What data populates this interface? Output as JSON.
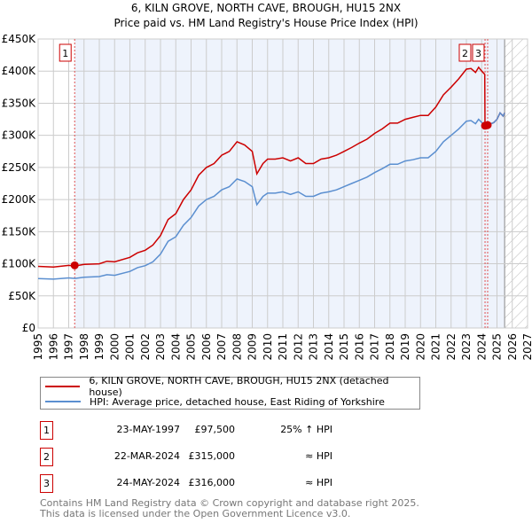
{
  "chart_data": {
    "type": "line",
    "title": "6, KILN GROVE, NORTH CAVE, BROUGH, HU15 2NX",
    "subtitle": "Price paid vs. HM Land Registry's House Price Index (HPI)",
    "xlim": [
      1995,
      2027
    ],
    "ylim": [
      0,
      450000
    ],
    "x_ticks": [
      "1995",
      "1996",
      "1997",
      "1998",
      "1999",
      "2000",
      "2001",
      "2002",
      "2003",
      "2004",
      "2005",
      "2006",
      "2007",
      "2008",
      "2009",
      "2010",
      "2011",
      "2012",
      "2013",
      "2014",
      "2015",
      "2016",
      "2017",
      "2018",
      "2019",
      "2020",
      "2021",
      "2022",
      "2023",
      "2024",
      "2025",
      "2026",
      "2027"
    ],
    "y_ticks": [
      {
        "v": 0,
        "label": "£0"
      },
      {
        "v": 50000,
        "label": "£50K"
      },
      {
        "v": 100000,
        "label": "£100K"
      },
      {
        "v": 150000,
        "label": "£150K"
      },
      {
        "v": 200000,
        "label": "£200K"
      },
      {
        "v": 250000,
        "label": "£250K"
      },
      {
        "v": 300000,
        "label": "£300K"
      },
      {
        "v": 350000,
        "label": "£350K"
      },
      {
        "v": 400000,
        "label": "£400K"
      },
      {
        "v": 450000,
        "label": "£450K"
      }
    ],
    "grid": true,
    "shaded_range": [
      1997.39,
      2025.5
    ],
    "forecast_hatch_from": 2025.5,
    "x": [
      1995,
      1996,
      1997,
      1997.4,
      1998,
      1999,
      1999.5,
      2000,
      2001,
      2001.5,
      2002,
      2002.5,
      2003,
      2003.5,
      2004,
      2004.5,
      2005,
      2005.5,
      2006,
      2006.5,
      2007,
      2007.5,
      2008,
      2008.5,
      2009,
      2009.3,
      2009.7,
      2010,
      2010.5,
      2011,
      2011.5,
      2012,
      2012.5,
      2013,
      2013.5,
      2014,
      2014.5,
      2015,
      2015.5,
      2016,
      2016.5,
      2017,
      2017.5,
      2018,
      2018.5,
      2019,
      2019.5,
      2020,
      2020.5,
      2021,
      2021.5,
      2022,
      2022.5,
      2023,
      2023.3,
      2023.6,
      2023.8,
      2024,
      2024.2,
      2024.22,
      2024.4,
      2024.8,
      2025,
      2025.2,
      2025.4,
      2025.5
    ],
    "series": [
      {
        "name": "6, KILN GROVE, NORTH CAVE, BROUGH, HU15 2NX (detached house)",
        "color": "#cc0000",
        "values": [
          96000,
          95000,
          97500,
          96500,
          99000,
          100000,
          104000,
          103000,
          110000,
          117000,
          121000,
          129000,
          144000,
          169000,
          178000,
          200000,
          215000,
          238000,
          250000,
          256000,
          269000,
          275000,
          290000,
          285000,
          275000,
          240000,
          256000,
          263000,
          263000,
          265000,
          260000,
          265000,
          256000,
          256000,
          263000,
          265000,
          269000,
          275000,
          281000,
          288000,
          294000,
          303000,
          310000,
          319000,
          319000,
          325000,
          328000,
          331000,
          331000,
          344000,
          363000,
          375000,
          388000,
          403000,
          404000,
          398000,
          406000,
          400000,
          395000,
          315000,
          316000,
          320000,
          325000,
          335000,
          330000,
          335000
        ]
      },
      {
        "name": "HPI: Average price, detached house, East Riding of Yorkshire",
        "color": "#5b8fd0",
        "values": [
          77000,
          76000,
          78000,
          77200,
          79000,
          80000,
          83000,
          82000,
          88000,
          94000,
          97000,
          103000,
          115000,
          135000,
          142000,
          160000,
          172000,
          190000,
          200000,
          205000,
          215000,
          220000,
          232000,
          228000,
          220000,
          192000,
          205000,
          210000,
          210000,
          212000,
          208000,
          212000,
          205000,
          205000,
          210000,
          212000,
          215000,
          220000,
          225000,
          230000,
          235000,
          242000,
          248000,
          255000,
          255000,
          260000,
          262000,
          265000,
          265000,
          275000,
          290000,
          300000,
          310000,
          322000,
          323000,
          318000,
          325000,
          320000,
          316000,
          315000,
          316000,
          320000,
          325000,
          335000,
          330000,
          335000
        ]
      }
    ],
    "markers": [
      {
        "id": "1",
        "x": 1997.39,
        "y": 97500
      },
      {
        "id": "2",
        "x": 2024.22,
        "y": 315000
      },
      {
        "id": "3",
        "x": 2024.39,
        "y": 316000
      }
    ]
  },
  "legend": {
    "property": "6, KILN GROVE, NORTH CAVE, BROUGH, HU15 2NX (detached house)",
    "hpi": "HPI: Average price, detached house, East Riding of Yorkshire"
  },
  "transactions": [
    {
      "id": "1",
      "date": "23-MAY-1997",
      "price": "£97,500",
      "hpi": "25% ↑ HPI"
    },
    {
      "id": "2",
      "date": "22-MAR-2024",
      "price": "£315,000",
      "hpi": "≈ HPI"
    },
    {
      "id": "3",
      "date": "24-MAY-2024",
      "price": "£316,000",
      "hpi": "≈ HPI"
    }
  ],
  "footer": {
    "line1": "Contains HM Land Registry data © Crown copyright and database right 2025.",
    "line2": "This data is licensed under the Open Government Licence v3.0."
  }
}
